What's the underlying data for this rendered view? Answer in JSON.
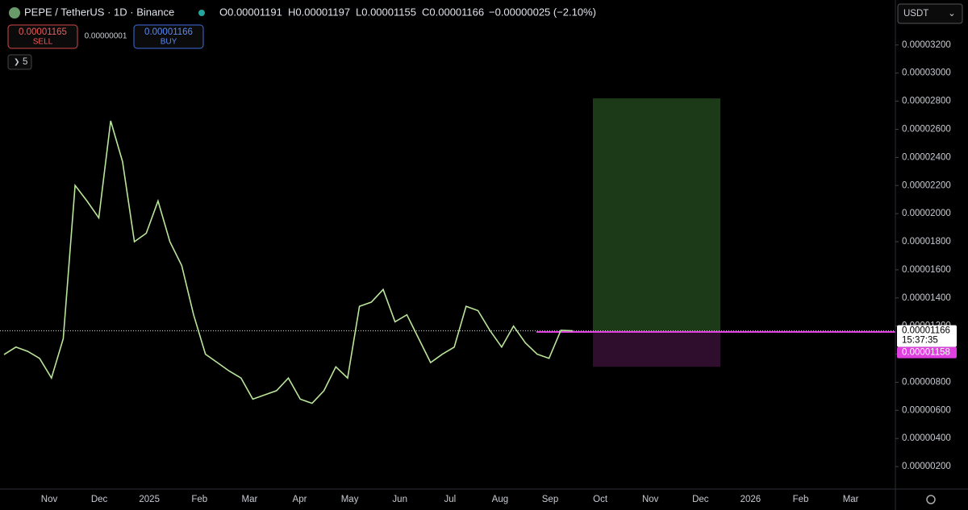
{
  "header": {
    "symbol": "PEPE / TetherUS · 1D · Binance",
    "open": "O0.00001191",
    "high": "H0.00001197",
    "low": "L0.00001155",
    "close": "C0.00001166",
    "change": "−0.00000025 (−2.10%)",
    "currency": "USDT"
  },
  "order_panel": {
    "sell_price": "0.00001165",
    "sell_label": "SELL",
    "spread": "0.00000001",
    "buy_price": "0.00001166",
    "buy_label": "BUY",
    "indicator_count": "5"
  },
  "chart_data": {
    "type": "line",
    "series": [
      {
        "name": "PEPE / TetherUS",
        "color": "#b9e59a",
        "values": [
          9.97e-06,
          1.05e-05,
          1.02e-05,
          9.7e-06,
          8.3e-06,
          1.11e-05,
          2.2e-05,
          2.09e-05,
          1.97e-05,
          2.66e-05,
          2.37e-05,
          1.8e-05,
          1.86e-05,
          2.09e-05,
          1.8e-05,
          1.63e-05,
          1.28e-05,
          1e-05,
          9.4e-06,
          8.8e-06,
          8.3e-06,
          6.8e-06,
          7.1e-06,
          7.4e-06,
          8.3e-06,
          6.8e-06,
          6.5e-06,
          7.4e-06,
          9.1e-06,
          8.3e-06,
          1.34e-05,
          1.37e-05,
          1.46e-05,
          1.23e-05,
          1.28e-05,
          1.11e-05,
          9.4e-06,
          1e-05,
          1.05e-05,
          1.34e-05,
          1.31e-05,
          1.17e-05,
          1.05e-05,
          1.2e-05,
          1.08e-05,
          1e-05,
          9.7e-06,
          1.17e-05,
          1.166e-05
        ]
      }
    ],
    "xticks": [
      "Nov",
      "Dec",
      "2025",
      "Feb",
      "Mar",
      "Apr",
      "May",
      "Jun",
      "Jul",
      "Aug",
      "Sep",
      "Oct",
      "Nov",
      "Dec",
      "2026",
      "Feb",
      "Mar"
    ],
    "ylim": [
      4e-07,
      3.52e-05
    ],
    "yticks": [
      {
        "value": 2e-06,
        "label": "0.00000200"
      },
      {
        "value": 4e-06,
        "label": "0.00000400"
      },
      {
        "value": 6e-06,
        "label": "0.00000600"
      },
      {
        "value": 8e-06,
        "label": "0.00000800"
      },
      {
        "value": 1e-05,
        "label": "0.00001000"
      },
      {
        "value": 1.2e-05,
        "label": "0.00001200"
      },
      {
        "value": 1.4e-05,
        "label": "0.00001400"
      },
      {
        "value": 1.6e-05,
        "label": "0.00001600"
      },
      {
        "value": 1.8e-05,
        "label": "0.00001800"
      },
      {
        "value": 2e-05,
        "label": "0.00002000"
      },
      {
        "value": 2.2e-05,
        "label": "0.00002200"
      },
      {
        "value": 2.4e-05,
        "label": "0.00002400"
      },
      {
        "value": 2.6e-05,
        "label": "0.00002600"
      },
      {
        "value": 2.8e-05,
        "label": "0.00002800"
      },
      {
        "value": 3e-05,
        "label": "0.00003000"
      },
      {
        "value": 3.2e-05,
        "label": "0.00003200"
      }
    ],
    "last_price": {
      "value": 1.166e-05,
      "label": "0.00001166"
    },
    "countdown": "15:37:35",
    "position": {
      "target": 2.82e-05,
      "entry": {
        "value": 1.158e-05,
        "label": "0.00001158"
      },
      "stop": 9.1e-06,
      "profit_color": "#1c3a17",
      "loss_color": "#2e0e2c",
      "entry_color": "#e040e0"
    }
  }
}
